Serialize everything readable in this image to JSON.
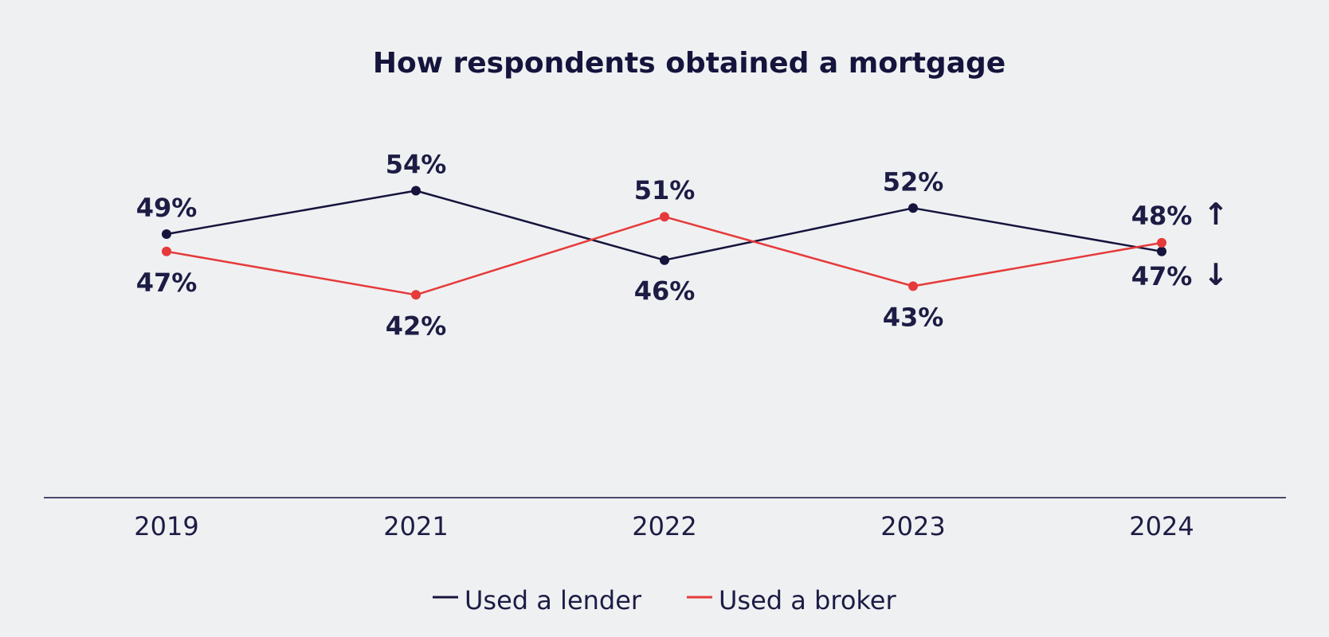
{
  "chart_data": {
    "type": "line",
    "title": "How respondents obtained a mortgage",
    "categories": [
      "2019",
      "2021",
      "2022",
      "2023",
      "2024"
    ],
    "series": [
      {
        "name": "Used a lender",
        "values": [
          49,
          54,
          46,
          52,
          47
        ],
        "labels": [
          "49%",
          "54%",
          "46%",
          "52%",
          "47%"
        ],
        "color": "#14143c"
      },
      {
        "name": "Used a broker",
        "values": [
          47,
          42,
          51,
          43,
          48
        ],
        "labels": [
          "47%",
          "42%",
          "51%",
          "43%",
          "48%"
        ],
        "color": "#e63a3a"
      }
    ],
    "annotations": [
      {
        "series": "Used a broker",
        "category": "2024",
        "arrow": "↑"
      },
      {
        "series": "Used a lender",
        "category": "2024",
        "arrow": "↓"
      }
    ],
    "legend_position": "bottom-center",
    "grid": false
  }
}
